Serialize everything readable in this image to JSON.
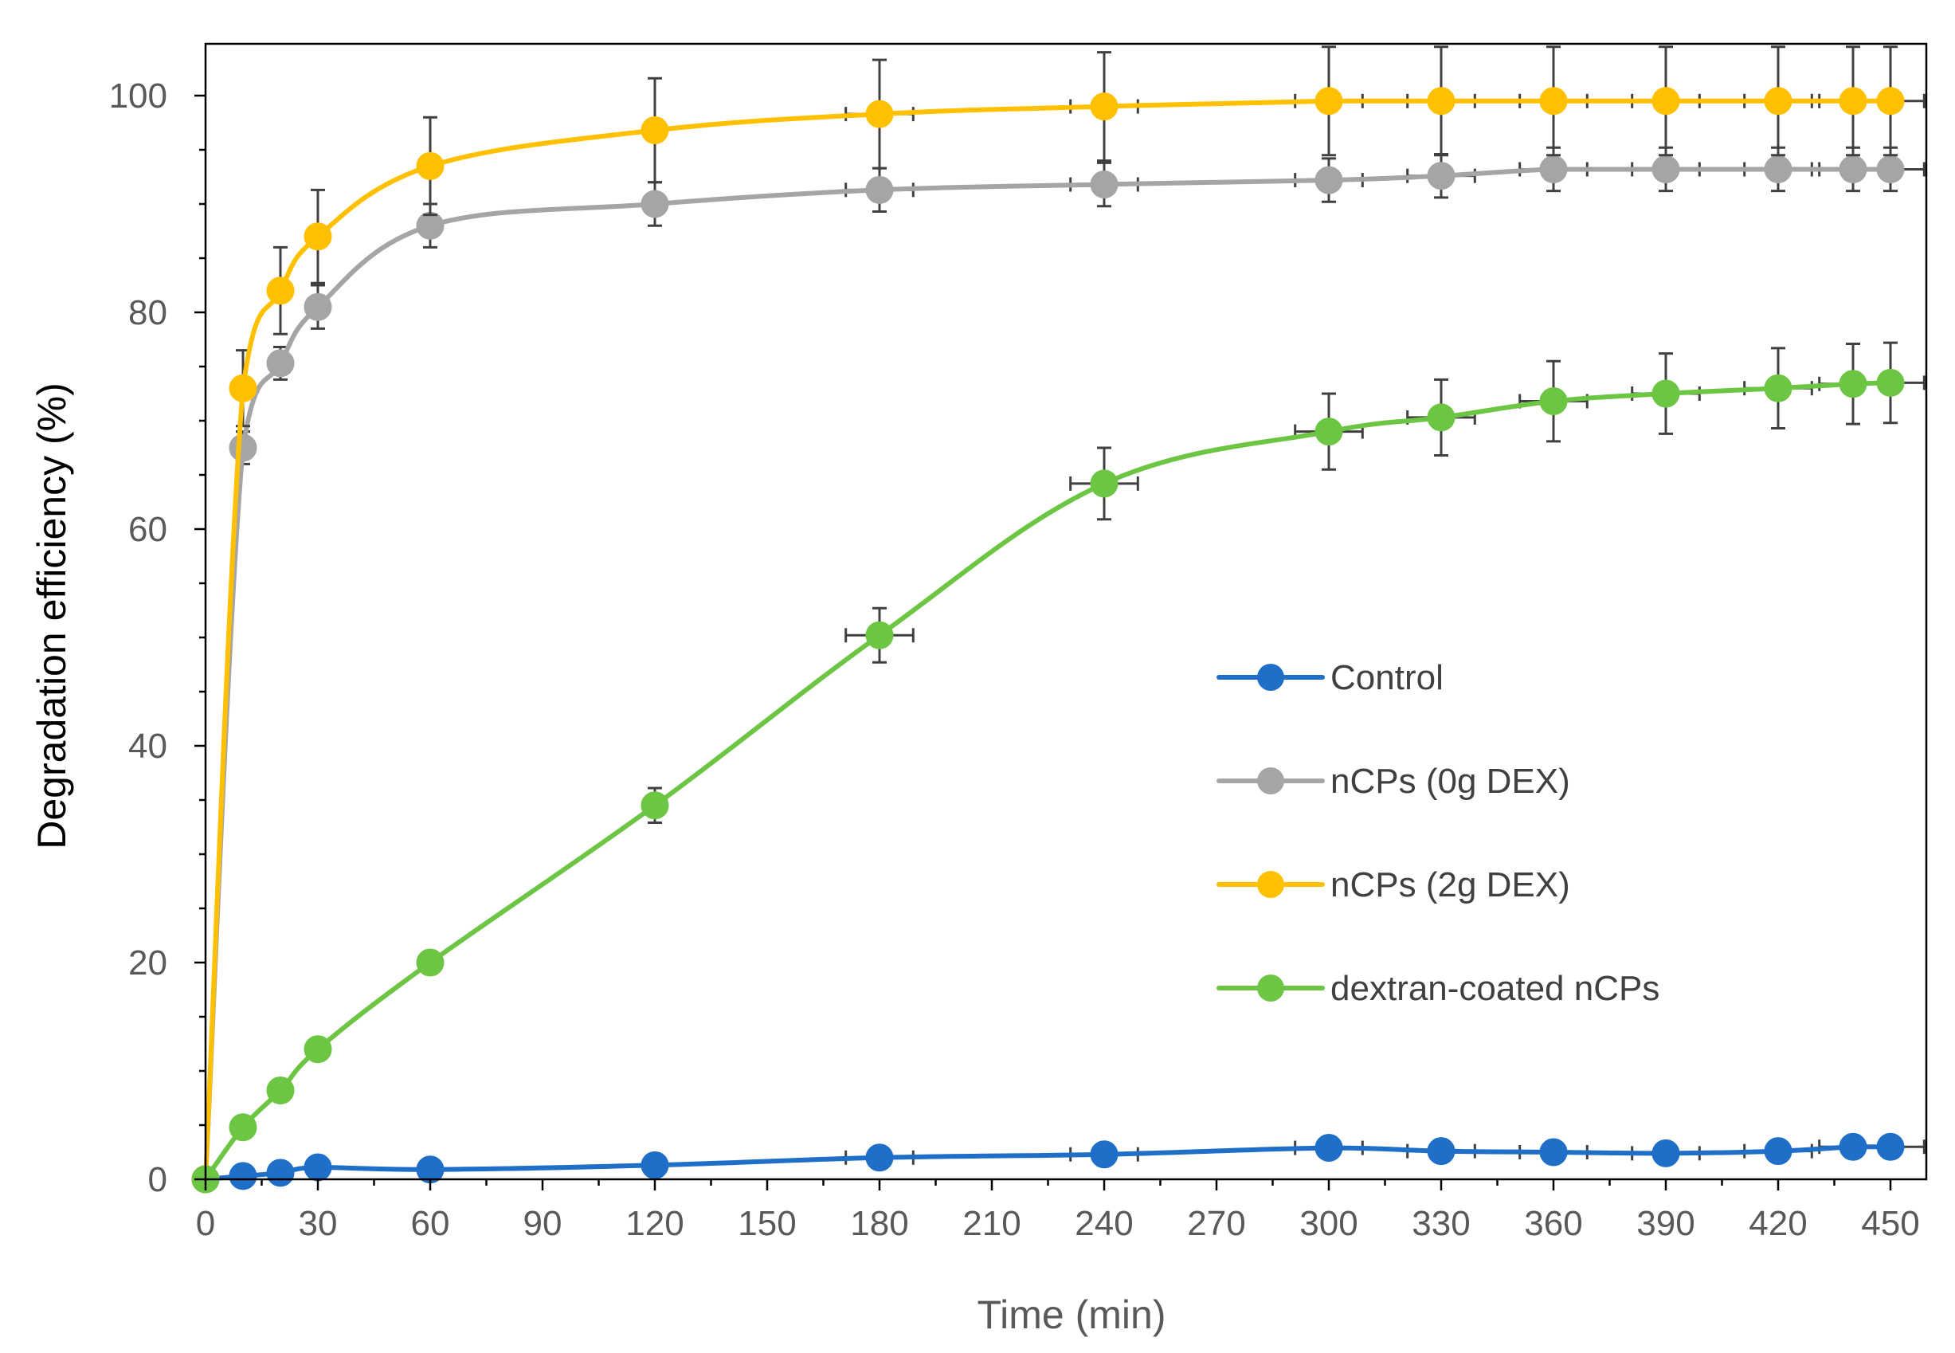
{
  "chart_data": {
    "type": "line",
    "title": "",
    "xlabel": "Time (min)",
    "ylabel": "Degradation efficiency (%)",
    "xlim": [
      0,
      460
    ],
    "ylim": [
      0,
      105
    ],
    "x_ticks": [
      0,
      30,
      60,
      90,
      120,
      150,
      180,
      210,
      240,
      270,
      300,
      330,
      360,
      390,
      420,
      450
    ],
    "y_ticks": [
      0,
      20,
      40,
      60,
      80,
      100
    ],
    "grid": false,
    "legend_position": "center-right",
    "x": [
      0,
      10,
      20,
      30,
      60,
      120,
      180,
      240,
      300,
      330,
      360,
      390,
      420,
      440,
      450
    ],
    "series": [
      {
        "name": "Control",
        "color": "#1f6fc9",
        "values": [
          0,
          0.3,
          0.6,
          1.1,
          0.9,
          1.3,
          2.0,
          2.3,
          2.9,
          2.6,
          2.5,
          2.4,
          2.6,
          3.0,
          3.0
        ],
        "errors": [
          0,
          0,
          0,
          0,
          0,
          0,
          0,
          0,
          0,
          0,
          0,
          0,
          0,
          0,
          0
        ],
        "x_errors": [
          0,
          0,
          0,
          0,
          0,
          0,
          9,
          9,
          9,
          9,
          9,
          9,
          9,
          9,
          9
        ]
      },
      {
        "name": "nCPs (0g DEX)",
        "color": "#a5a5a5",
        "values": [
          0,
          67.5,
          75.3,
          80.5,
          88.0,
          90.0,
          91.3,
          91.8,
          92.2,
          92.6,
          93.2,
          93.2,
          93.2,
          93.2,
          93.2
        ],
        "errors": [
          0,
          1.5,
          1.5,
          2.0,
          2.0,
          2.0,
          2.0,
          2.0,
          2.0,
          2.0,
          2.0,
          2.0,
          2.0,
          2.0,
          2.0
        ],
        "x_errors": [
          0,
          0,
          0,
          0,
          0,
          0,
          9,
          9,
          9,
          9,
          9,
          9,
          9,
          9,
          9
        ]
      },
      {
        "name": "nCPs (2g DEX)",
        "color": "#ffc000",
        "values": [
          0,
          73.0,
          82.0,
          87.0,
          93.5,
          96.8,
          98.3,
          99.0,
          99.5,
          99.5,
          99.5,
          99.5,
          99.5,
          99.5,
          99.5
        ],
        "errors": [
          0,
          3.5,
          4.0,
          4.3,
          4.5,
          4.8,
          5.0,
          5.0,
          5.0,
          5.0,
          5.0,
          5.0,
          5.0,
          5.0,
          5.0
        ],
        "x_errors": [
          0,
          0,
          0,
          0,
          0,
          0,
          9,
          9,
          9,
          9,
          9,
          9,
          9,
          9,
          9
        ]
      },
      {
        "name": "dextran-coated nCPs",
        "color": "#6cc644",
        "values": [
          0,
          4.8,
          8.2,
          12.0,
          20.0,
          34.5,
          50.2,
          64.2,
          69.0,
          70.3,
          71.8,
          72.5,
          73.0,
          73.4,
          73.5
        ],
        "errors": [
          0,
          0,
          0,
          0,
          0,
          1.6,
          2.5,
          3.3,
          3.5,
          3.5,
          3.7,
          3.7,
          3.7,
          3.7,
          3.7
        ],
        "x_errors": [
          0,
          0,
          0,
          0,
          0,
          0,
          9,
          9,
          9,
          9,
          9,
          9,
          9,
          9,
          9
        ]
      }
    ]
  }
}
